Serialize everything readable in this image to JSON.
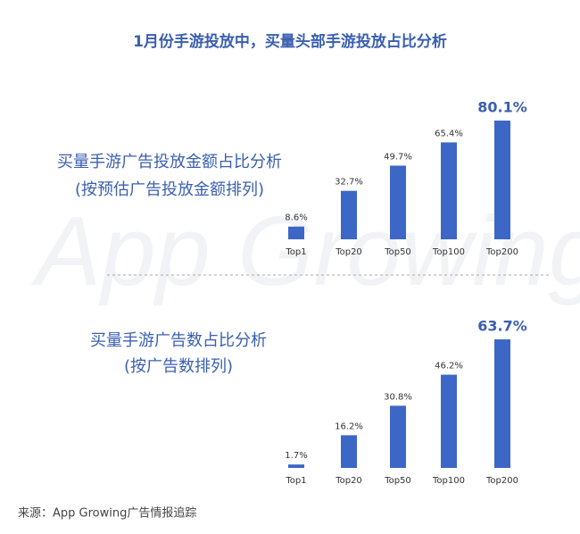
{
  "title": "1月份手游投放中，买量头部手游投放占比分析",
  "watermark": "App Growing",
  "source": "来源：App Growing广告情报追踪",
  "chart_data": [
    {
      "type": "bar",
      "title": "买量手游广告投放金额占比分析",
      "subtitle": "(按预估广告投放金额排列)",
      "categories": [
        "Top1",
        "Top20",
        "Top50",
        "Top100",
        "Top200"
      ],
      "values": [
        8.6,
        32.7,
        49.7,
        65.4,
        80.1
      ],
      "value_labels": [
        "8.6%",
        "32.7%",
        "49.7%",
        "65.4%",
        "80.1%"
      ],
      "color": "#3c67c6"
    },
    {
      "type": "bar",
      "title": "买量手游广告数占比分析",
      "subtitle": "(按广告数排列)",
      "categories": [
        "Top1",
        "Top20",
        "Top50",
        "Top100",
        "Top200"
      ],
      "values": [
        1.7,
        16.2,
        30.8,
        46.2,
        63.7
      ],
      "value_labels": [
        "1.7%",
        "16.2%",
        "30.8%",
        "46.2%",
        "63.7%"
      ],
      "color": "#3c67c6"
    }
  ]
}
